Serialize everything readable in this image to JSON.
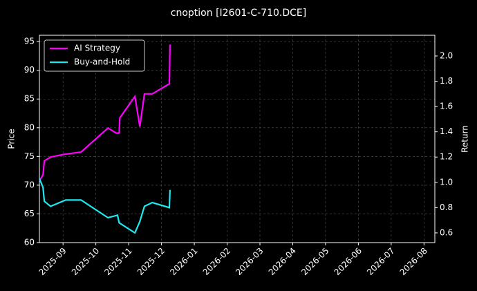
{
  "chart_data": {
    "type": "line",
    "title": "cnoption [I2601-C-710.DCE]",
    "ylabel": "Price",
    "y2label": "Return",
    "xlim": [
      -0.72,
      11.33
    ],
    "xticks": [
      {
        "value": 0,
        "label": "2025-09"
      },
      {
        "value": 1,
        "label": "2025-10"
      },
      {
        "value": 2,
        "label": "2025-11"
      },
      {
        "value": 3,
        "label": "2025-12"
      },
      {
        "value": 4,
        "label": "2026-01"
      },
      {
        "value": 5,
        "label": "2026-02"
      },
      {
        "value": 6,
        "label": "2026-03"
      },
      {
        "value": 7,
        "label": "2026-04"
      },
      {
        "value": 8,
        "label": "2026-05"
      },
      {
        "value": 9,
        "label": "2026-06"
      },
      {
        "value": 10,
        "label": "2026-07"
      },
      {
        "value": 11,
        "label": "2026-08"
      }
    ],
    "ylim": [
      60,
      96.1
    ],
    "yticks": [
      60,
      65,
      70,
      75,
      80,
      85,
      90,
      95
    ],
    "y2lim": [
      0.523,
      2.164
    ],
    "y2ticks": [
      0.6,
      0.8,
      {
        "value": 1,
        "label": "1.0"
      },
      1.2,
      1.4,
      1.6,
      1.8,
      {
        "value": 2,
        "label": "2.0"
      }
    ],
    "grid": true,
    "legend": "upper left",
    "series": [
      {
        "name": "AI Strategy",
        "color": "#ff00ff",
        "axis": "y2",
        "x": [
          -0.72,
          -0.61,
          -0.57,
          -0.38,
          0,
          0.55,
          1.37,
          1.62,
          1.71,
          1.73,
          2.19,
          2.34,
          2.48,
          2.72,
          3.24,
          3.26
        ],
        "values": [
          1.01,
          1.06,
          1.17,
          1.2,
          1.22,
          1.24,
          1.43,
          1.39,
          1.39,
          1.51,
          1.68,
          1.44,
          1.7,
          1.7,
          1.78,
          2.09
        ]
      },
      {
        "name": "Buy-and-Hold",
        "color": "#1ee8f0",
        "axis": "y2",
        "x": [
          -0.72,
          -0.61,
          -0.57,
          -0.38,
          0.08,
          0.55,
          1.37,
          1.66,
          1.71,
          2.19,
          2.34,
          2.48,
          2.72,
          3.24,
          3.26
        ],
        "values": [
          1.03,
          0.96,
          0.85,
          0.81,
          0.86,
          0.86,
          0.72,
          0.74,
          0.68,
          0.6,
          0.69,
          0.81,
          0.84,
          0.8,
          0.94
        ]
      }
    ]
  }
}
